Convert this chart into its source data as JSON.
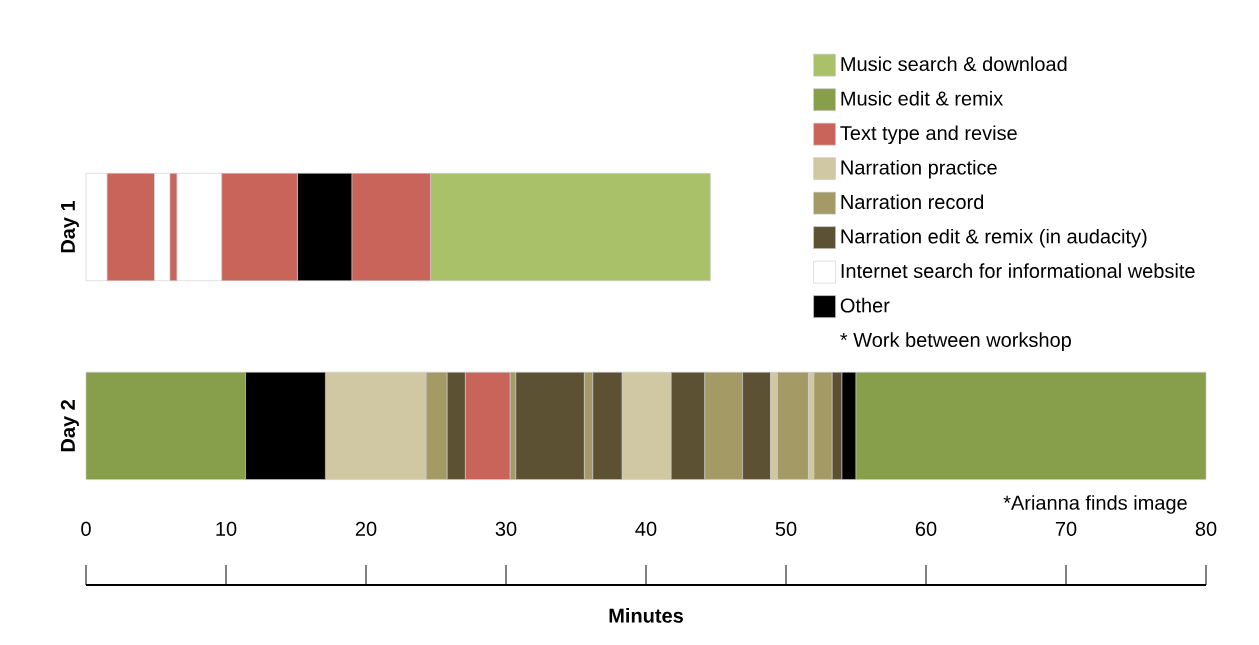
{
  "chart_data": {
    "type": "bar",
    "orientation": "horizontal",
    "categories": [
      "Day 1",
      "Day 2"
    ],
    "xlabel": "Minutes",
    "xlim": [
      0,
      80
    ],
    "xticks": [
      0,
      10,
      20,
      30,
      40,
      50,
      60,
      70,
      80
    ],
    "legend": "top right",
    "annotations": [
      "* Work between workshop",
      "*Arianna finds image"
    ],
    "series": [
      {
        "name": "Music search & download",
        "color": "#a9c26a",
        "values": [
          20.0,
          null
        ],
        "base": [
          24.6,
          null
        ]
      },
      {
        "name": "Music edit & remix",
        "color": "#879e4b",
        "values": [
          null,
          11.4
        ],
        "base": [
          null,
          0
        ]
      },
      {
        "name": "Text type and revise",
        "color": "#c8645a",
        "values": [
          3.4,
          null
        ],
        "base": [
          1.5,
          null
        ]
      },
      {
        "name": "Narration practice",
        "color": "#d0c8a3",
        "values": [
          null,
          7.2
        ],
        "base": [
          null,
          17.1
        ]
      },
      {
        "name": "Narration record",
        "color": "#a39a66",
        "values": [
          null,
          1.5
        ],
        "base": [
          null,
          24.3
        ]
      },
      {
        "name": "Narration edit & remix (in audacity)",
        "color": "#5c5233",
        "values": [
          null,
          1.3
        ],
        "base": [
          null,
          25.8
        ]
      },
      {
        "name": "Internet search for informational website",
        "color": "#ffffff",
        "values": [
          1.5,
          null
        ],
        "base": [
          0,
          null
        ]
      },
      {
        "name": "Other",
        "color": "#000000",
        "values": [
          3.9,
          null
        ],
        "base": [
          15.1,
          null
        ]
      },
      {
        "color": "#ffffff",
        "values": [
          1.1,
          null
        ],
        "base": [
          4.9,
          null
        ]
      },
      {
        "color": "#c8645a",
        "values": [
          0.5,
          null
        ],
        "base": [
          6.0,
          null
        ]
      },
      {
        "color": "#ffffff",
        "values": [
          3.2,
          null
        ],
        "base": [
          6.5,
          null
        ]
      },
      {
        "color": "#c8645a",
        "values": [
          5.4,
          null
        ],
        "base": [
          9.7,
          null
        ]
      },
      {
        "color": "#c8645a",
        "values": [
          5.6,
          null
        ],
        "base": [
          19.0,
          null
        ]
      },
      {
        "color": "#000000",
        "values": [
          null,
          5.7
        ],
        "base": [
          null,
          11.4
        ]
      },
      {
        "color": "#c8645a",
        "values": [
          null,
          3.2
        ],
        "base": [
          null,
          27.1
        ]
      },
      {
        "color": "#a39a66",
        "values": [
          null,
          0.4
        ],
        "base": [
          null,
          30.3
        ]
      },
      {
        "color": "#5c5233",
        "values": [
          null,
          4.9
        ],
        "base": [
          null,
          30.7
        ]
      },
      {
        "color": "#a39a66",
        "values": [
          null,
          0.6
        ],
        "base": [
          null,
          35.6
        ]
      },
      {
        "color": "#5c5233",
        "values": [
          null,
          2.1
        ],
        "base": [
          null,
          36.2
        ]
      },
      {
        "color": "#d0c8a3",
        "values": [
          null,
          3.5
        ],
        "base": [
          null,
          38.3
        ]
      },
      {
        "color": "#5c5233",
        "values": [
          null,
          2.4
        ],
        "base": [
          null,
          41.8
        ]
      },
      {
        "color": "#a39a66",
        "values": [
          null,
          2.7
        ],
        "base": [
          null,
          44.2
        ]
      },
      {
        "color": "#5c5233",
        "values": [
          null,
          2.0
        ],
        "base": [
          null,
          46.9
        ]
      },
      {
        "color": "#d0c8a3",
        "values": [
          null,
          0.5
        ],
        "base": [
          null,
          48.9
        ]
      },
      {
        "color": "#a39a66",
        "values": [
          null,
          2.2
        ],
        "base": [
          null,
          49.4
        ]
      },
      {
        "color": "#d0c8a3",
        "values": [
          null,
          0.4
        ],
        "base": [
          null,
          51.6
        ]
      },
      {
        "color": "#a39a66",
        "values": [
          null,
          1.3
        ],
        "base": [
          null,
          52.0
        ]
      },
      {
        "color": "#5c5233",
        "values": [
          null,
          0.7
        ],
        "base": [
          null,
          53.3
        ]
      },
      {
        "color": "#000000",
        "values": [
          null,
          1.0
        ],
        "base": [
          null,
          54.0
        ]
      },
      {
        "color": "#879e4b",
        "values": [
          null,
          25.0
        ],
        "base": [
          null,
          55.0
        ]
      }
    ]
  }
}
